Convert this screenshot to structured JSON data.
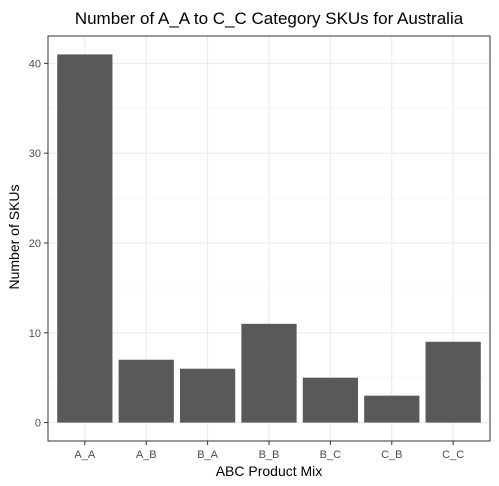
{
  "chart_data": {
    "type": "bar",
    "title": "Number of A_A to C_C Category SKUs for Australia",
    "xlabel": "ABC Product Mix",
    "ylabel": "Number of SKUs",
    "categories": [
      "A_A",
      "A_B",
      "B_A",
      "B_B",
      "B_C",
      "C_B",
      "C_C"
    ],
    "values": [
      41,
      7,
      6,
      11,
      5,
      3,
      9
    ],
    "ylim": [
      -2.05,
      43.05
    ],
    "yticks": [
      0,
      10,
      20,
      30,
      40
    ],
    "grid": true,
    "bar_color": "#595959",
    "theme": "bw"
  }
}
